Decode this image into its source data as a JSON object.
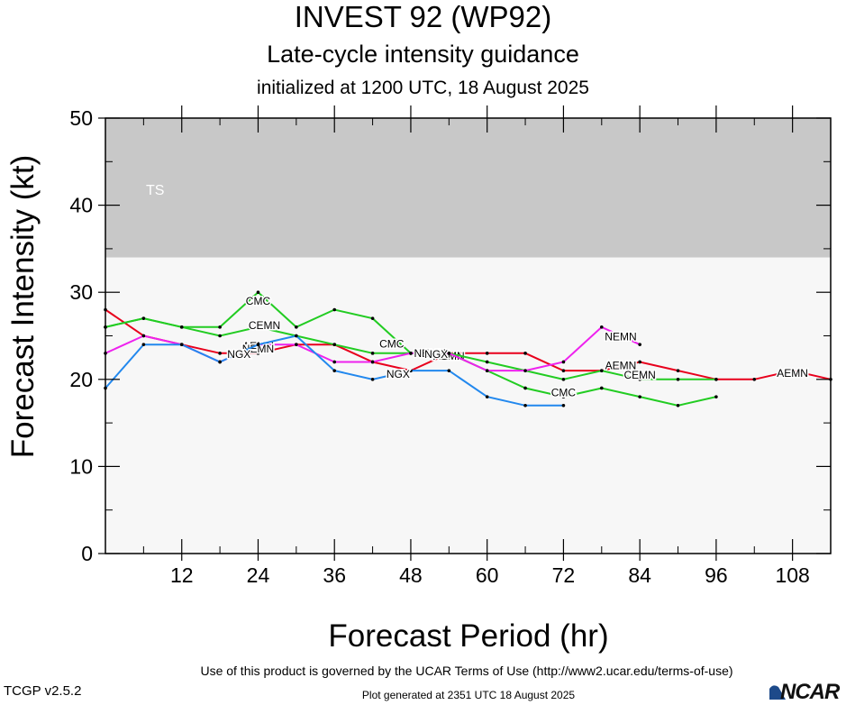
{
  "header": {
    "title": "INVEST 92 (WP92)",
    "subtitle": "Late-cycle intensity guidance",
    "initialized": "initialized at 1200 UTC, 18 August 2025"
  },
  "footer": {
    "terms": "Use of this product is governed by the UCAR Terms of Use (http://www2.ucar.edu/terms-of-use)",
    "generated": "Plot generated at 2351 UTC   18 August 2025",
    "version": "TCGP v2.5.2",
    "logo": "NCAR"
  },
  "chart_data": {
    "type": "line",
    "xlabel": "Forecast Period (hr)",
    "ylabel": "Forecast Intensity (kt)",
    "xlim": [
      0,
      114
    ],
    "ylim": [
      0,
      50
    ],
    "xticks": [
      12,
      24,
      36,
      48,
      60,
      72,
      84,
      96,
      108
    ],
    "yticks": [
      0,
      10,
      20,
      30,
      40,
      50
    ],
    "bands": [
      {
        "label": "TS",
        "from": 34,
        "to": 50,
        "color": "#c8c8c8"
      }
    ],
    "plot_background": "#f7f7f7",
    "series": [
      {
        "name": "AEMN",
        "color": "#e8001c",
        "x": [
          0,
          6,
          12,
          18,
          24,
          30,
          36,
          42,
          48,
          54,
          60,
          66,
          72,
          78,
          84,
          90,
          96,
          102,
          108,
          114
        ],
        "y": [
          28,
          25,
          24,
          23,
          23,
          24,
          24,
          22,
          21,
          23,
          23,
          23,
          21,
          21,
          22,
          21,
          20,
          20,
          21,
          20
        ],
        "labels": [
          {
            "x": 24,
            "y": 23.7
          },
          {
            "x": 54,
            "y": 22.6
          },
          {
            "x": 81,
            "y": 21.5
          },
          {
            "x": 108,
            "y": 20.6
          }
        ]
      },
      {
        "name": "CEMN",
        "color": "#22cc22",
        "x": [
          0,
          6,
          12,
          18,
          24,
          30,
          36,
          42,
          48,
          54,
          60,
          66,
          72,
          78,
          84,
          90,
          96
        ],
        "y": [
          26,
          27,
          26,
          25,
          26,
          25,
          24,
          23,
          23,
          23,
          22,
          21,
          20,
          21,
          20,
          20,
          20
        ],
        "labels": [
          {
            "x": 25,
            "y": 26.1
          },
          {
            "x": 84,
            "y": 20.4
          }
        ]
      },
      {
        "name": "CMC",
        "color": "#22cc22",
        "x": [
          0,
          6,
          12,
          18,
          24,
          30,
          36,
          42,
          48,
          54,
          60,
          66,
          72,
          78,
          84,
          90,
          96
        ],
        "y": [
          26,
          27,
          26,
          26,
          30,
          26,
          28,
          27,
          23,
          23,
          21,
          19,
          18,
          19,
          18,
          17,
          18
        ],
        "labels": [
          {
            "x": 24,
            "y": 28.9
          },
          {
            "x": 45,
            "y": 24
          },
          {
            "x": 72,
            "y": 18.4
          }
        ]
      },
      {
        "name": "NEMN",
        "color": "#ee22ee",
        "x": [
          0,
          6,
          12,
          18,
          24,
          30,
          36,
          42,
          48,
          54,
          60,
          66,
          72,
          78,
          84
        ],
        "y": [
          23,
          25,
          24,
          22,
          24,
          24,
          22,
          22,
          23,
          23,
          21,
          21,
          22,
          26,
          24
        ],
        "labels": [
          {
            "x": 24,
            "y": 23.4
          },
          {
            "x": 51,
            "y": 22.9
          },
          {
            "x": 81,
            "y": 24.8
          }
        ]
      },
      {
        "name": "NGX",
        "color": "#2288ee",
        "x": [
          0,
          6,
          12,
          18,
          24,
          30,
          36,
          42,
          48,
          54,
          60,
          66,
          72
        ],
        "y": [
          19,
          24,
          24,
          22,
          24,
          25,
          21,
          20,
          21,
          21,
          18,
          17,
          17
        ],
        "labels": [
          {
            "x": 21,
            "y": 22.8
          },
          {
            "x": 46,
            "y": 20.5
          },
          {
            "x": 52,
            "y": 22.8
          }
        ]
      }
    ],
    "band_label": "TS"
  }
}
